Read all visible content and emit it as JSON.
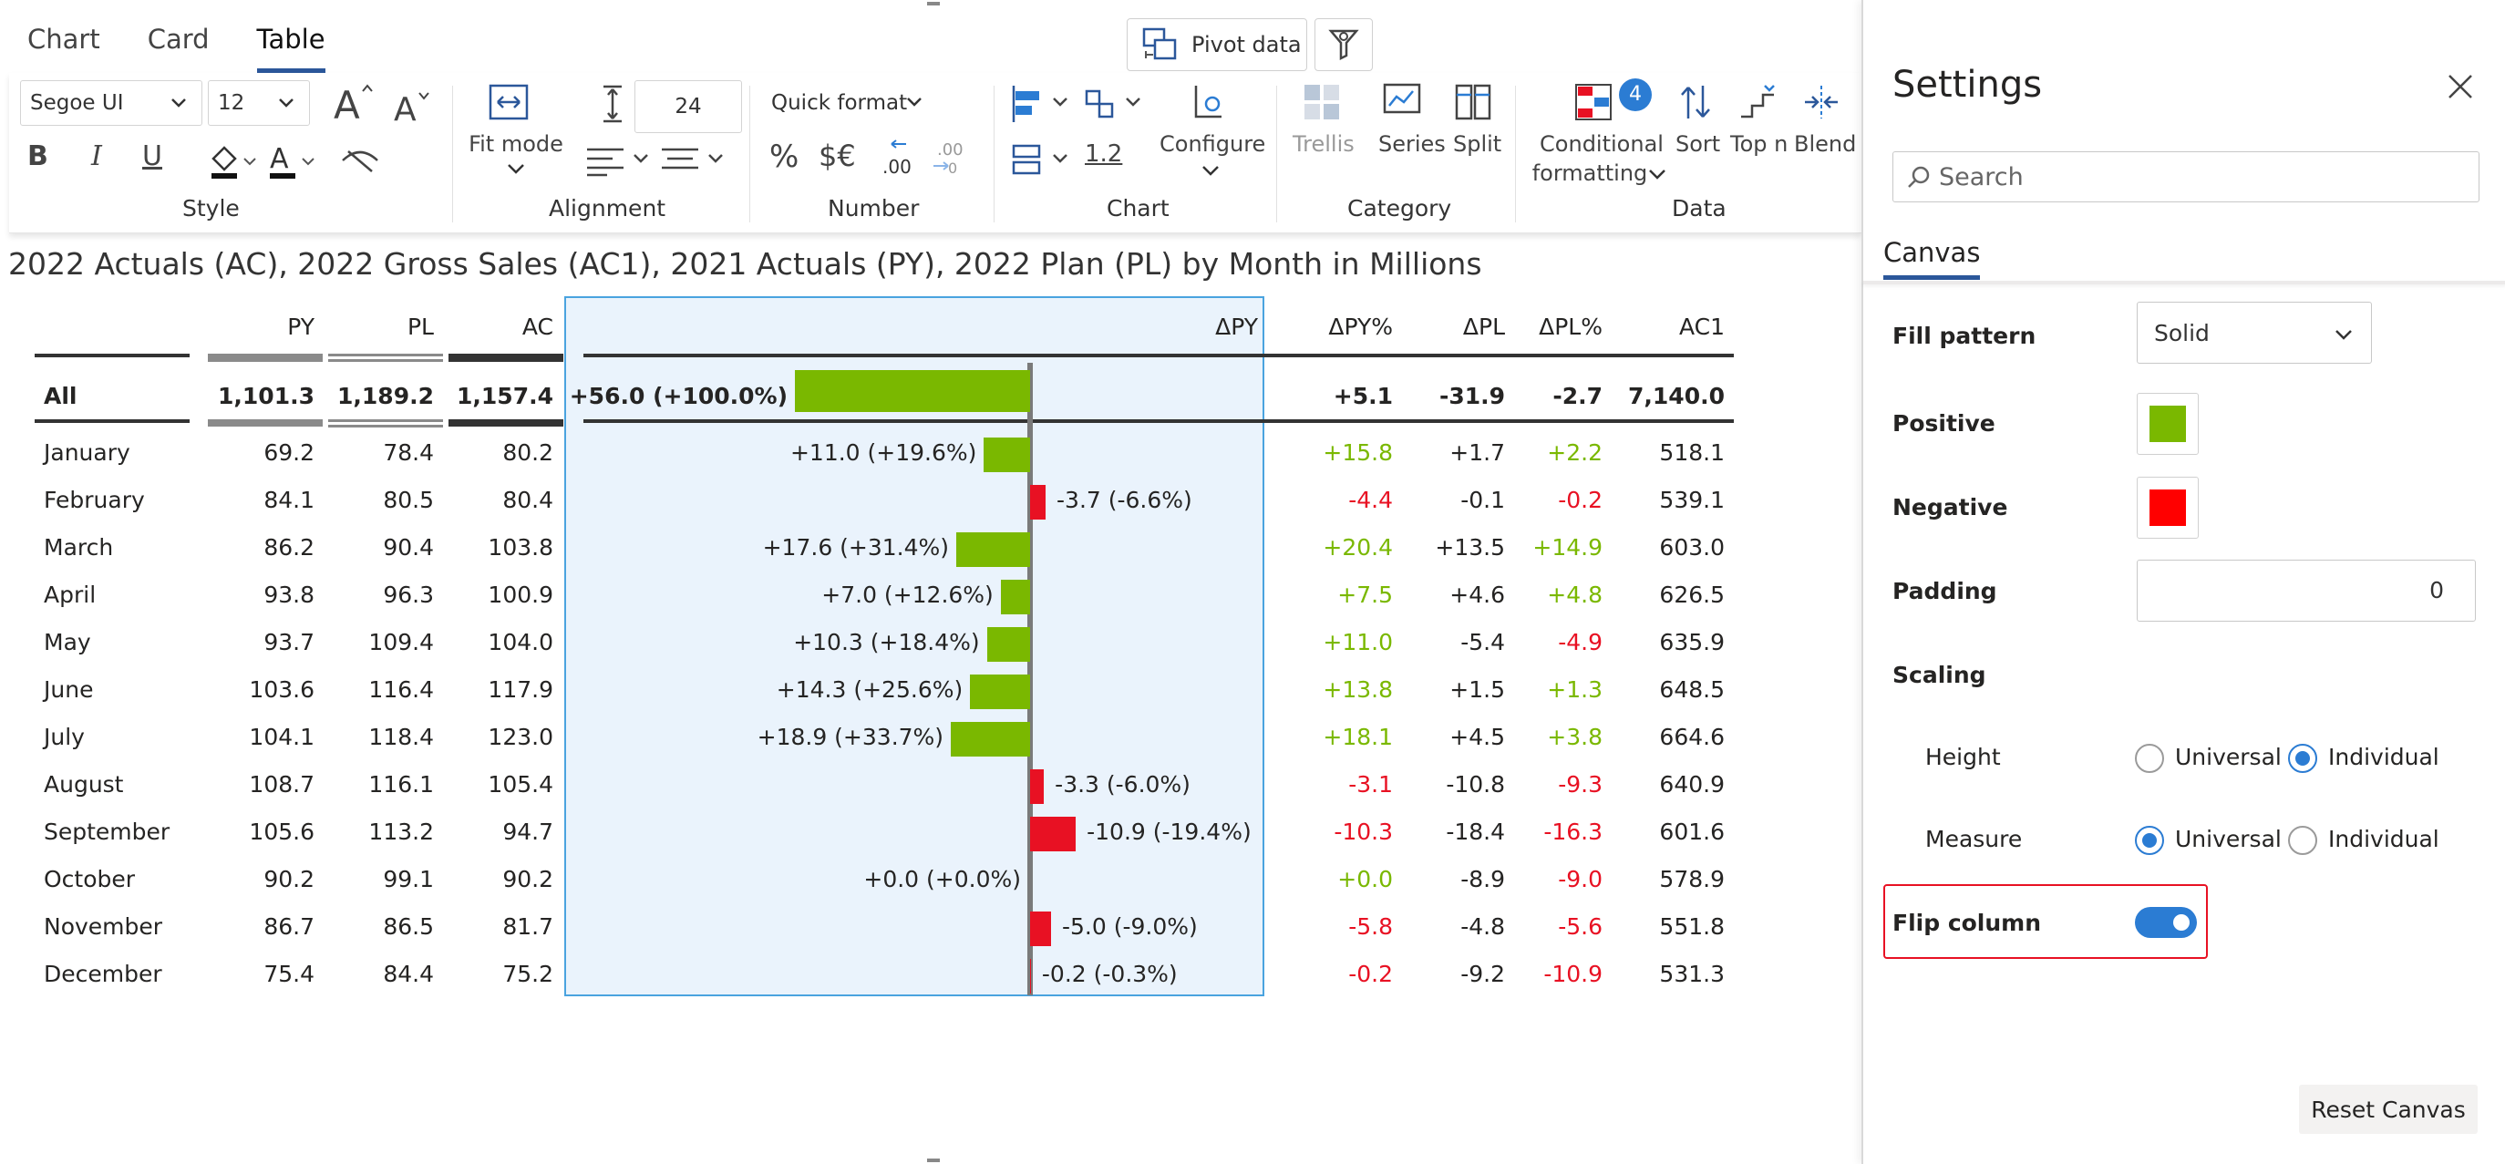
{
  "tabs": [
    {
      "label": "Chart",
      "active": false
    },
    {
      "label": "Card",
      "active": false
    },
    {
      "label": "Table",
      "active": true
    }
  ],
  "top_buttons": {
    "pivot_label": "Pivot data"
  },
  "ribbon": {
    "style": {
      "font_family": "Segoe UI",
      "font_size": "12",
      "group_label": "Style"
    },
    "alignment": {
      "fit_mode_label": "Fit mode",
      "row_height": "24",
      "group_label": "Alignment"
    },
    "number": {
      "quick_format_label": "Quick format",
      "decimal_example": "1.2",
      "group_label": "Number"
    },
    "chart": {
      "configure_label": "Configure",
      "group_label": "Chart"
    },
    "category": {
      "trellis_label": "Trellis",
      "series_label": "Series",
      "split_label": "Split",
      "group_label": "Category"
    },
    "data": {
      "conditional_label_1": "Conditional",
      "conditional_label_2": "formatting",
      "conditional_badge": "4",
      "sort_label": "Sort",
      "topn_label": "Top n",
      "blend_label": "Blend",
      "group_label": "Data"
    }
  },
  "title": "2022 Actuals (AC), 2022 Gross Sales (AC1), 2021 Actuals (PY), 2022 Plan (PL) by Month in Millions",
  "table": {
    "headers": {
      "py": "PY",
      "pl": "PL",
      "ac": "AC",
      "dpy": "ΔPY",
      "dpy_pct": "ΔPY%",
      "dpl": "ΔPL",
      "dpl_pct": "ΔPL%",
      "ac1": "AC1"
    },
    "total": {
      "label": "All",
      "py": "1,101.3",
      "pl": "1,189.2",
      "ac": "1,157.4",
      "dpy_label": "+56.0 (+100.0%)",
      "dpy_value": 56.0,
      "dpy_pct": "+5.1",
      "dpl": "-31.9",
      "dpl_pct": "-2.7",
      "ac1": "7,140.0"
    },
    "rows": [
      {
        "label": "January",
        "py": "69.2",
        "pl": "78.4",
        "ac": "80.2",
        "dpy_label": "+11.0 (+19.6%)",
        "dpy_value": 11.0,
        "dpy_pct": "+15.8",
        "dpl": "+1.7",
        "dpl_pct": "+2.2",
        "ac1": "518.1"
      },
      {
        "label": "February",
        "py": "84.1",
        "pl": "80.5",
        "ac": "80.4",
        "dpy_label": "-3.7 (-6.6%)",
        "dpy_value": -3.7,
        "dpy_pct": "-4.4",
        "dpl": "-0.1",
        "dpl_pct": "-0.2",
        "ac1": "539.1"
      },
      {
        "label": "March",
        "py": "86.2",
        "pl": "90.4",
        "ac": "103.8",
        "dpy_label": "+17.6 (+31.4%)",
        "dpy_value": 17.6,
        "dpy_pct": "+20.4",
        "dpl": "+13.5",
        "dpl_pct": "+14.9",
        "ac1": "603.0"
      },
      {
        "label": "April",
        "py": "93.8",
        "pl": "96.3",
        "ac": "100.9",
        "dpy_label": "+7.0 (+12.6%)",
        "dpy_value": 7.0,
        "dpy_pct": "+7.5",
        "dpl": "+4.6",
        "dpl_pct": "+4.8",
        "ac1": "626.5"
      },
      {
        "label": "May",
        "py": "93.7",
        "pl": "109.4",
        "ac": "104.0",
        "dpy_label": "+10.3 (+18.4%)",
        "dpy_value": 10.3,
        "dpy_pct": "+11.0",
        "dpl": "-5.4",
        "dpl_pct": "-4.9",
        "ac1": "635.9"
      },
      {
        "label": "June",
        "py": "103.6",
        "pl": "116.4",
        "ac": "117.9",
        "dpy_label": "+14.3 (+25.6%)",
        "dpy_value": 14.3,
        "dpy_pct": "+13.8",
        "dpl": "+1.5",
        "dpl_pct": "+1.3",
        "ac1": "648.5"
      },
      {
        "label": "July",
        "py": "104.1",
        "pl": "118.4",
        "ac": "123.0",
        "dpy_label": "+18.9 (+33.7%)",
        "dpy_value": 18.9,
        "dpy_pct": "+18.1",
        "dpl": "+4.5",
        "dpl_pct": "+3.8",
        "ac1": "664.6"
      },
      {
        "label": "August",
        "py": "108.7",
        "pl": "116.1",
        "ac": "105.4",
        "dpy_label": "-3.3 (-6.0%)",
        "dpy_value": -3.3,
        "dpy_pct": "-3.1",
        "dpl": "-10.8",
        "dpl_pct": "-9.3",
        "ac1": "640.9"
      },
      {
        "label": "September",
        "py": "105.6",
        "pl": "113.2",
        "ac": "94.7",
        "dpy_label": "-10.9 (-19.4%)",
        "dpy_value": -10.9,
        "dpy_pct": "-10.3",
        "dpl": "-18.4",
        "dpl_pct": "-16.3",
        "ac1": "601.6"
      },
      {
        "label": "October",
        "py": "90.2",
        "pl": "99.1",
        "ac": "90.2",
        "dpy_label": "+0.0 (+0.0%)",
        "dpy_value": 0.0,
        "dpy_pct": "+0.0",
        "dpl": "-8.9",
        "dpl_pct": "-9.0",
        "ac1": "578.9"
      },
      {
        "label": "November",
        "py": "86.7",
        "pl": "86.5",
        "ac": "81.7",
        "dpy_label": "-5.0 (-9.0%)",
        "dpy_value": -5.0,
        "dpy_pct": "-5.8",
        "dpl": "-4.8",
        "dpl_pct": "-5.6",
        "ac1": "551.8"
      },
      {
        "label": "December",
        "py": "75.4",
        "pl": "84.4",
        "ac": "75.2",
        "dpy_label": "-0.2 (-0.3%)",
        "dpy_value": -0.2,
        "dpy_pct": "-0.2",
        "dpl": "-9.2",
        "dpl_pct": "-10.9",
        "ac1": "531.3"
      }
    ]
  },
  "settings": {
    "title": "Settings",
    "search_placeholder": "Search",
    "tab": "Canvas",
    "fill_pattern_label": "Fill pattern",
    "fill_pattern_value": "Solid",
    "positive_label": "Positive",
    "positive_color": "#7ab800",
    "negative_label": "Negative",
    "negative_color": "#ff0000",
    "padding_label": "Padding",
    "padding_value": "0",
    "scaling_label": "Scaling",
    "height_label": "Height",
    "measure_label": "Measure",
    "universal_label": "Universal",
    "individual_label": "Individual",
    "height_selected": "Individual",
    "measure_selected": "Universal",
    "flip_column_label": "Flip column",
    "flip_column_on": true,
    "reset_label": "Reset Canvas"
  },
  "colors": {
    "accent": "#2b579a",
    "positive": "#7ab800",
    "negative": "#e81123",
    "selection": "#4aa3df"
  }
}
